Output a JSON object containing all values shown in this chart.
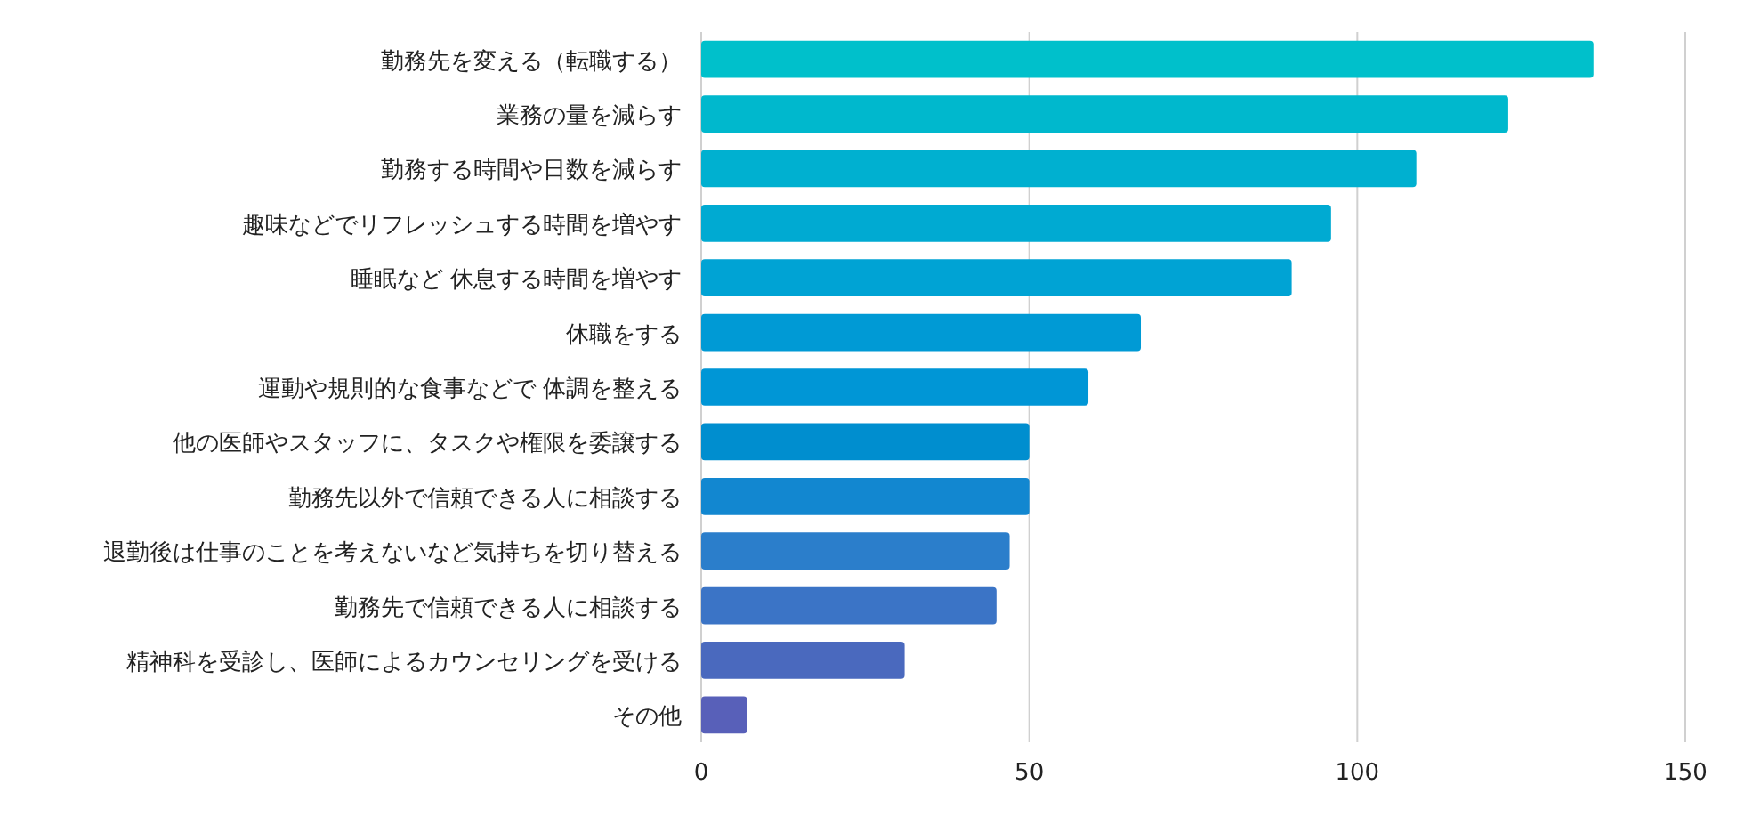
{
  "chart_data": {
    "type": "bar",
    "orientation": "horizontal",
    "categories": [
      "勤務先を変える（転職する）",
      "業務の量を減らす",
      "勤務する時間や日数を減らす",
      "趣味などでリフレッシュする時間を増やす",
      "睡眠など 休息する時間を増やす",
      "休職をする",
      "運動や規則的な食事などで 体調を整える",
      "他の医師やスタッフに、タスクや権限を委譲する",
      "勤務先以外で信頼できる人に相談する",
      "退勤後は仕事のことを考えないなど気持ちを切り替える",
      "勤務先で信頼できる人に相談する",
      "精神科を受診し、医師によるカウンセリングを受ける",
      "その他"
    ],
    "values": [
      136,
      123,
      109,
      96,
      90,
      67,
      59,
      50,
      50,
      47,
      45,
      31,
      7
    ],
    "colors": [
      "#00c0cb",
      "#00b8cd",
      "#00b0d0",
      "#00aad2",
      "#00a3d4",
      "#009ad5",
      "#0096d6",
      "#008ecf",
      "#1287d0",
      "#2b7ecb",
      "#3b74c6",
      "#4a69be",
      "#5860b9"
    ],
    "xlim": [
      0,
      150
    ],
    "xticks": [
      0,
      50,
      100,
      150
    ],
    "grid": "x"
  }
}
